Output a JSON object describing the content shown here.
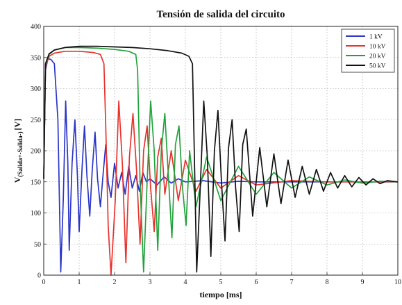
{
  "chart_data": {
    "type": "line",
    "title": "Tensión de salida del circuito",
    "xlabel": "tiempo [ms]",
    "ylabel": "V",
    "ylabel_subscript": "(Salida+-Salida-)",
    "ylabel_unit": "[V]",
    "xlim": [
      0,
      10
    ],
    "ylim": [
      0,
      400
    ],
    "xticks": [
      0,
      1,
      2,
      3,
      4,
      5,
      6,
      7,
      8,
      9,
      10
    ],
    "yticks": [
      0,
      50,
      100,
      150,
      200,
      250,
      300,
      350,
      400
    ],
    "grid": true,
    "legend_position": "top-right",
    "series": [
      {
        "name": "1 kV",
        "color": "#2b35c8",
        "x": [
          0,
          0.05,
          0.12,
          0.2,
          0.3,
          0.4,
          0.48,
          0.55,
          0.62,
          0.68,
          0.72,
          0.8,
          0.88,
          0.95,
          1.0,
          1.08,
          1.15,
          1.22,
          1.3,
          1.37,
          1.45,
          1.52,
          1.6,
          1.68,
          1.75,
          1.82,
          1.9,
          2.0,
          2.1,
          2.2,
          2.3,
          2.4,
          2.5,
          2.6,
          2.7,
          2.8,
          2.9,
          3.0,
          3.2,
          3.4,
          3.6,
          3.8,
          4.0,
          4.5,
          5.0,
          5.5,
          6.0,
          7.0,
          8.0,
          9.0,
          10.0
        ],
        "y": [
          155,
          330,
          348,
          347,
          340,
          250,
          5,
          120,
          280,
          180,
          40,
          180,
          250,
          160,
          70,
          170,
          240,
          160,
          95,
          170,
          230,
          155,
          110,
          165,
          210,
          150,
          125,
          180,
          140,
          165,
          130,
          175,
          140,
          160,
          135,
          165,
          150,
          155,
          145,
          158,
          148,
          155,
          150,
          152,
          148,
          151,
          150,
          150,
          150,
          150,
          150
        ]
      },
      {
        "name": "10 kV",
        "color": "#e8322d",
        "x": [
          0,
          0.05,
          0.15,
          0.3,
          0.6,
          1.0,
          1.4,
          1.6,
          1.7,
          1.75,
          1.82,
          1.9,
          2.02,
          2.12,
          2.22,
          2.32,
          2.42,
          2.52,
          2.62,
          2.72,
          2.82,
          2.92,
          3.02,
          3.12,
          3.22,
          3.32,
          3.42,
          3.6,
          3.8,
          4.0,
          4.3,
          4.6,
          5.0,
          5.5,
          6.0,
          7.0,
          8.0,
          9.0,
          10.0
        ],
        "y": [
          155,
          335,
          352,
          357,
          360,
          360,
          358,
          355,
          340,
          240,
          80,
          0,
          120,
          280,
          180,
          20,
          190,
          260,
          170,
          50,
          200,
          240,
          140,
          70,
          190,
          220,
          130,
          200,
          120,
          185,
          135,
          170,
          140,
          160,
          145,
          152,
          150,
          150,
          150
        ]
      },
      {
        "name": "20 kV",
        "color": "#22a23c",
        "x": [
          0,
          0.05,
          0.15,
          0.3,
          0.6,
          1.0,
          1.5,
          2.0,
          2.4,
          2.6,
          2.65,
          2.72,
          2.82,
          2.92,
          3.02,
          3.12,
          3.22,
          3.32,
          3.42,
          3.52,
          3.62,
          3.72,
          3.82,
          3.92,
          4.02,
          4.12,
          4.3,
          4.6,
          5.0,
          5.5,
          6.0,
          6.5,
          7.0,
          7.5,
          8.0,
          8.5,
          9.0,
          9.5,
          10.0
        ],
        "y": [
          155,
          338,
          355,
          362,
          366,
          366,
          365,
          363,
          360,
          355,
          330,
          150,
          5,
          150,
          280,
          200,
          40,
          200,
          260,
          160,
          60,
          210,
          240,
          140,
          80,
          200,
          110,
          190,
          120,
          175,
          130,
          165,
          140,
          158,
          145,
          153,
          148,
          151,
          150
        ]
      },
      {
        "name": "50 kV",
        "color": "#111111",
        "x": [
          0,
          0.05,
          0.15,
          0.3,
          0.6,
          1.0,
          1.5,
          2.0,
          2.5,
          3.0,
          3.5,
          3.9,
          4.1,
          4.2,
          4.25,
          4.32,
          4.42,
          4.52,
          4.62,
          4.72,
          4.82,
          4.92,
          5.02,
          5.12,
          5.22,
          5.32,
          5.42,
          5.52,
          5.62,
          5.72,
          5.9,
          6.1,
          6.3,
          6.5,
          6.7,
          6.9,
          7.1,
          7.3,
          7.5,
          7.7,
          7.9,
          8.1,
          8.3,
          8.5,
          8.7,
          8.9,
          9.1,
          9.3,
          9.5,
          9.7,
          10.0
        ],
        "y": [
          155,
          340,
          356,
          362,
          366,
          368,
          368,
          367,
          366,
          364,
          361,
          357,
          352,
          340,
          200,
          5,
          140,
          280,
          190,
          30,
          200,
          265,
          150,
          55,
          205,
          250,
          140,
          70,
          210,
          235,
          95,
          205,
          110,
          195,
          115,
          185,
          125,
          175,
          130,
          170,
          135,
          165,
          140,
          160,
          142,
          157,
          145,
          155,
          147,
          152,
          150
        ]
      }
    ]
  }
}
